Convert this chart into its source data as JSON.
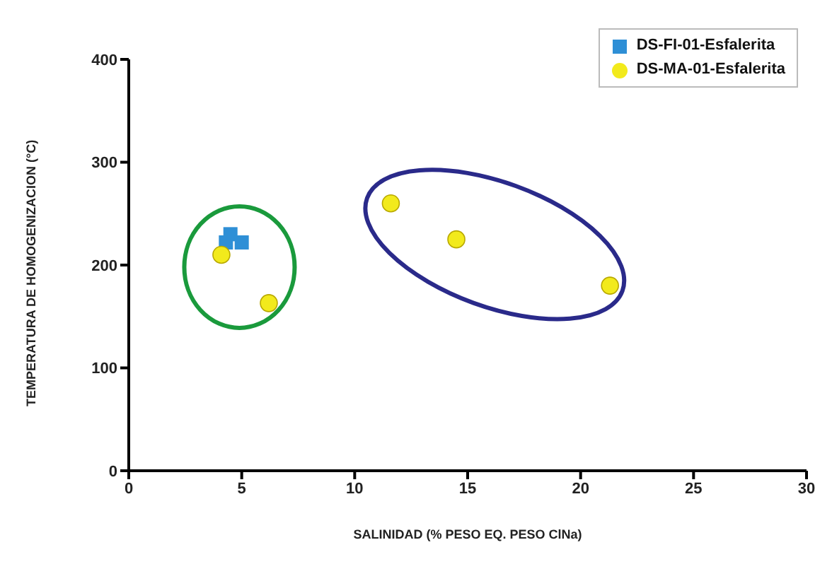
{
  "chart_data": {
    "type": "scatter",
    "xlabel": "SALINIDAD (% PESO EQ. PESO ClNa)",
    "ylabel": "TEMPERATURA DE HOMOGENIZACION (°C)",
    "xlim": [
      0,
      30
    ],
    "xticks": [
      0,
      5,
      10,
      15,
      20,
      25,
      30
    ],
    "ylim": [
      0,
      400
    ],
    "yticks": [
      0,
      100,
      200,
      300,
      400
    ],
    "grid": false,
    "legend": "top right",
    "series": [
      {
        "name": "DS-FI-01-Esfalerita",
        "color": "#2e8fd6",
        "marker": "square",
        "x": [
          4.5,
          4.3,
          5.0
        ],
        "values": [
          230,
          222,
          222
        ]
      },
      {
        "name": "DS-MA-01-Esfalerita",
        "color": "#f2ea1c",
        "marker": "circle",
        "x": [
          4.1,
          6.2,
          11.6,
          14.5,
          21.3
        ],
        "values": [
          210,
          163,
          260,
          225,
          180
        ]
      }
    ]
  }
}
